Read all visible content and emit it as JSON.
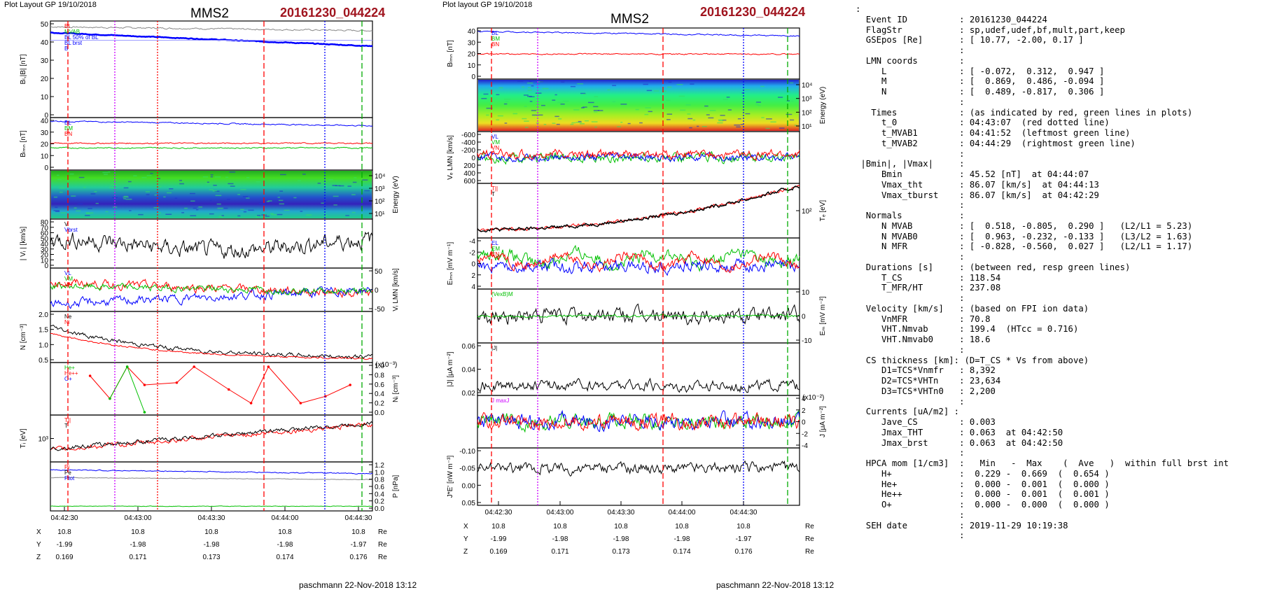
{
  "page": {
    "left_header": "Plot Layout GP 19/10/2018",
    "right_header": "Plot layout GP 19/10/2018",
    "spacecraft": "MMS2",
    "event": "20161230_044224",
    "footer_left": "paschmann 22-Nov-2018 13:12",
    "footer_right": "paschmann 22-Nov-2018 13:12"
  },
  "colors": {
    "event": "#a0141e",
    "red": "#ff0000",
    "green": "#00c000",
    "blue": "#0000ff",
    "magenta": "#cc00ff",
    "black": "#000000",
    "gray": "#888888"
  },
  "time_axis": {
    "left_ticks": [
      "04:42:30",
      "04:43:00",
      "04:43:30",
      "04:44:00",
      "04:44:30"
    ],
    "right_ticks": [
      "04:42:30",
      "04:43:00",
      "04:43:30",
      "04:44:00",
      "04:44:30"
    ],
    "ephem_labels": [
      "X",
      "Y",
      "Z"
    ],
    "unit": "Re",
    "ephem": {
      "X": [
        "10.8",
        "10.8",
        "10.8",
        "10.8",
        "10.8"
      ],
      "Y": [
        "-1.99",
        "-1.98",
        "-1.98",
        "-1.98",
        "-1.97"
      ],
      "Z": [
        "0.169",
        "0.171",
        "0.173",
        "0.174",
        "0.176"
      ]
    }
  },
  "chart_data": [
    {
      "type": "line",
      "column": "left",
      "ylabel": "Bₗ,|B| [nT]",
      "ylim": [
        0,
        50
      ],
      "ticks_left": [
        "0",
        "10",
        "20",
        "30",
        "40",
        "50"
      ],
      "ticks_right": [],
      "legend": [
        "Bt",
        "MVAB",
        "BL 50% of BL",
        "BL brst",
        "B"
      ],
      "legend_colors": [
        "#ff0000",
        "#00c000",
        "#0000ff",
        "#0000ff",
        "#0000ff"
      ]
    },
    {
      "type": "line",
      "column": "left",
      "ylabel": "Bₗₘₙ [nT]",
      "ylim": [
        0,
        40
      ],
      "ticks_left": [
        "0",
        "10",
        "20",
        "30",
        "40"
      ],
      "ticks_right": [],
      "legend": [
        "BL",
        "BM",
        "BN"
      ],
      "legend_colors": [
        "#0000ff",
        "#00c000",
        "#ff0000"
      ]
    },
    {
      "type": "heatmap",
      "column": "left",
      "ylabel": "Energy (eV)",
      "ticks_left": [],
      "ticks_right": [
        "10¹",
        "10²",
        "10³",
        "10⁴"
      ],
      "legend": [],
      "legend_colors": []
    },
    {
      "type": "line",
      "column": "left",
      "ylabel": "| Vᵢ | [km/s]",
      "ylim": [
        0,
        80
      ],
      "ticks_left": [
        "0",
        "10",
        "20",
        "30",
        "40",
        "50",
        "60",
        "70",
        "80"
      ],
      "ticks_right": [],
      "legend": [
        "V",
        "Vbrst"
      ],
      "legend_colors": [
        "#000000",
        "#0000ff"
      ]
    },
    {
      "type": "line",
      "column": "left",
      "ylabel": "Vᵢ LMN [km/s]",
      "ylim": [
        -50,
        50
      ],
      "ticks_left": [],
      "ticks_right": [
        "50",
        "0",
        "-50"
      ],
      "legend": [
        "VL",
        "VM",
        "VN"
      ],
      "legend_colors": [
        "#0000ff",
        "#00c000",
        "#ff0000"
      ]
    },
    {
      "type": "line",
      "column": "left",
      "ylabel": "N [cm⁻³]",
      "ylim": [
        0.5,
        2.0
      ],
      "ticks_left": [
        "0.5",
        "1.0",
        "1.5",
        "2.0"
      ],
      "ticks_right": [],
      "legend": [
        "Ne",
        "Ni"
      ],
      "legend_colors": [
        "#000000",
        "#ff0000"
      ]
    },
    {
      "type": "line",
      "column": "left",
      "ylabel": "Nᵢ [cm⁻³]",
      "ylim": [
        0,
        1.0
      ],
      "ticks_left": [],
      "ticks_right": [
        "1.0",
        "0.8",
        "0.6",
        "0.4",
        "0.2",
        "0.0"
      ],
      "scale_note": "(x10⁻³)",
      "legend": [
        "He+",
        "He++",
        "O+"
      ],
      "legend_colors": [
        "#00c000",
        "#ff0000",
        "#0000ff"
      ],
      "series": [
        {
          "name": "He++",
          "x": [
            "04:42:40",
            "04:42:48",
            "04:42:55",
            "04:43:02",
            "04:43:15",
            "04:43:22",
            "04:43:36",
            "04:43:45",
            "04:43:52",
            "04:44:05",
            "04:44:15",
            "04:44:25"
          ],
          "values": [
            0.8,
            0.3,
            1.0,
            0.6,
            0.65,
            1.0,
            0.5,
            0.2,
            1.0,
            0.2,
            0.35,
            0.6
          ]
        },
        {
          "name": "He+",
          "x": [
            "04:42:48",
            "04:42:55",
            "04:43:02"
          ],
          "values": [
            0.3,
            1.0,
            0.0
          ]
        }
      ]
    },
    {
      "type": "line",
      "column": "left",
      "ylabel": "Tᵢ [eV]",
      "ticks_left": [
        "10³"
      ],
      "ticks_right": [],
      "legend": [
        "T||",
        "T"
      ],
      "legend_colors": [
        "#ff0000",
        "#000000"
      ]
    },
    {
      "type": "line",
      "column": "left",
      "ylabel": "P [nPa]",
      "ylim": [
        0,
        1.2
      ],
      "ticks_left": [],
      "ticks_right": [
        "1.2",
        "1.0",
        "0.8",
        "0.6",
        "0.4",
        "0.2",
        "0.0"
      ],
      "legend": [
        "Pi",
        "Pe",
        "Ptot"
      ],
      "legend_colors": [
        "#ff0000",
        "#000000",
        "#0000ff"
      ]
    },
    {
      "type": "line",
      "column": "right",
      "ylabel": "Bₗₘₙ [nT]",
      "ylim": [
        0,
        40
      ],
      "ticks_left": [
        "0",
        "10",
        "20",
        "30",
        "40"
      ],
      "ticks_right": [],
      "legend": [
        "BL",
        "BM",
        "BN"
      ],
      "legend_colors": [
        "#0000ff",
        "#00c000",
        "#ff0000"
      ]
    },
    {
      "type": "heatmap",
      "column": "right",
      "ylabel": "Energy (eV)",
      "ticks_left": [],
      "ticks_right": [
        "10¹",
        "10²",
        "10³",
        "10⁴"
      ],
      "legend": [],
      "legend_colors": []
    },
    {
      "type": "line",
      "column": "right",
      "ylabel": "Vₑ LMN [km/s]",
      "ylim": [
        -600,
        600
      ],
      "ticks_left": [
        "600",
        "400",
        "200",
        "0",
        "-200",
        "-400",
        "-600"
      ],
      "ticks_right": [],
      "legend": [
        "VL",
        "VM",
        "VN"
      ],
      "legend_colors": [
        "#0000ff",
        "#00c000",
        "#ff0000"
      ]
    },
    {
      "type": "line",
      "column": "right",
      "ylabel": "Tₑ [eV]",
      "ticks_left": [],
      "ticks_right": [
        "10²"
      ],
      "legend": [
        "T||",
        "T"
      ],
      "legend_colors": [
        "#ff0000",
        "#000000"
      ]
    },
    {
      "type": "line",
      "column": "right",
      "ylabel": "Eₗₘₙ [mV m⁻¹]",
      "ylim": [
        -4,
        4
      ],
      "ticks_left": [
        "4",
        "2",
        "0",
        "-2",
        "-4"
      ],
      "ticks_right": [],
      "legend": [
        "EL",
        "EM",
        "EN"
      ],
      "legend_colors": [
        "#0000ff",
        "#00c000",
        "#ff0000"
      ]
    },
    {
      "type": "line",
      "column": "right",
      "ylabel": "Eₘ [mV m⁻²]",
      "ylim": [
        -10,
        10
      ],
      "ticks_left": [],
      "ticks_right": [
        "10",
        "0",
        "-10"
      ],
      "legend": [
        "(VexB)M"
      ],
      "legend_colors": [
        "#00c000"
      ]
    },
    {
      "type": "line",
      "column": "right",
      "ylabel": "|J| [μA m⁻²]",
      "ylim": [
        0,
        0.06
      ],
      "ticks_left": [
        "0.02",
        "0.04",
        "0.06"
      ],
      "ticks_right": [],
      "legend": [
        "|J|"
      ],
      "legend_colors": [
        "#000000"
      ]
    },
    {
      "type": "line",
      "column": "right",
      "ylabel": "J [μA m⁻²]",
      "ylim": [
        -4,
        4
      ],
      "ticks_left": [],
      "ticks_right": [
        "4",
        "2",
        "0",
        "-2",
        "-4"
      ],
      "scale_note": "(x10⁻²)",
      "legend": [
        "J maxJ"
      ],
      "legend_colors": [
        "#cc00ff"
      ]
    },
    {
      "type": "line",
      "column": "right",
      "ylabel": "J*E' [nW m⁻³]",
      "ylim": [
        -0.1,
        0.05
      ],
      "ticks_left": [
        "0.05",
        "0.00",
        "-0.05",
        "-0.10"
      ],
      "ticks_right": [],
      "legend": [],
      "legend_colors": []
    }
  ],
  "info_lines": [
    ":",
    "  Event ID          : 20161230_044224",
    "  FlagStr           : sp,udef,udef,bf,mult,part,keep",
    "  GSEpos [Re]       : [ 10.77, -2.00, 0.17 ]",
    "                    :",
    "  LMN coords        :",
    "     L              : [ -0.072,  0.312,  0.947 ]",
    "     M              : [  0.869,  0.486, -0.094 ]",
    "     N              : [  0.489, -0.817,  0.306 ]",
    "                    :",
    "   Times            : (as indicated by red, green lines in plots)",
    "     t_0            : 04:43:07  (red dotted line)",
    "     t_MVAB1        : 04:41:52  (leftmost green line)",
    "     t_MVAB2        : 04:44:29  (rightmost green line)",
    "                    :",
    " |Bmin|, |Vmax|     :",
    "     Bmin           : 45.52 [nT]  at 04:44:07",
    "     Vmax_tht       : 86.07 [km/s]  at 04:44:13",
    "     Vmax_tburst    : 86.07 [km/s]  at 04:42:29",
    "                    :",
    "  Normals           :",
    "     N MVAB         : [  0.518, -0.805,  0.290 ]   (L2/L1 = 5.23)",
    "     N MVAB0        : [  0.963, -0.232, -0.133 ]   (L3/L2 = 1.63)",
    "     N MFR          : [ -0.828, -0.560,  0.027 ]   (L2/L1 = 1.17)",
    "                    :",
    "  Durations [s]     : (between red, resp green lines)",
    "     T_CS           : 118.54",
    "     T_MFR/HT       : 237.08",
    "                    :",
    "  Velocity [km/s]   : (based on FPI ion data)",
    "     VnMFR          : 70.8",
    "     VHT.Nmvab      : 199.4  (HTcc = 0.716)",
    "     VHT.Nmvab0     : 18.6",
    "                    :",
    "  CS thickness [km]: (D=T_CS * Vs from above)",
    "     D1=TCS*Vnmfr   : 8,392",
    "     D2=TCS*VHTn    : 23,634",
    "     D3=TCS*VHTn0   : 2,200",
    "                    :",
    "  Currents [uA/m2] :",
    "     Jave_CS        : 0.003",
    "     Jmax_THT       : 0.063  at 04:42:50",
    "     Jmax_brst      : 0.063  at 04:42:50",
    "                    :",
    "  HPCA mom [1/cm3]  :   Min   -  Max    (  Ave   )  within full brst int",
    "     H+             :  0.229 -  0.669  (  0.654 )",
    "     He+            :  0.000 -  0.001  (  0.000 )",
    "     He++           :  0.000 -  0.001  (  0.001 )",
    "     O+             :  0.000 -  0.000  (  0.000 )",
    "                    :",
    "  SEH date          : 2019-11-29 10:19:38",
    "                    :"
  ]
}
